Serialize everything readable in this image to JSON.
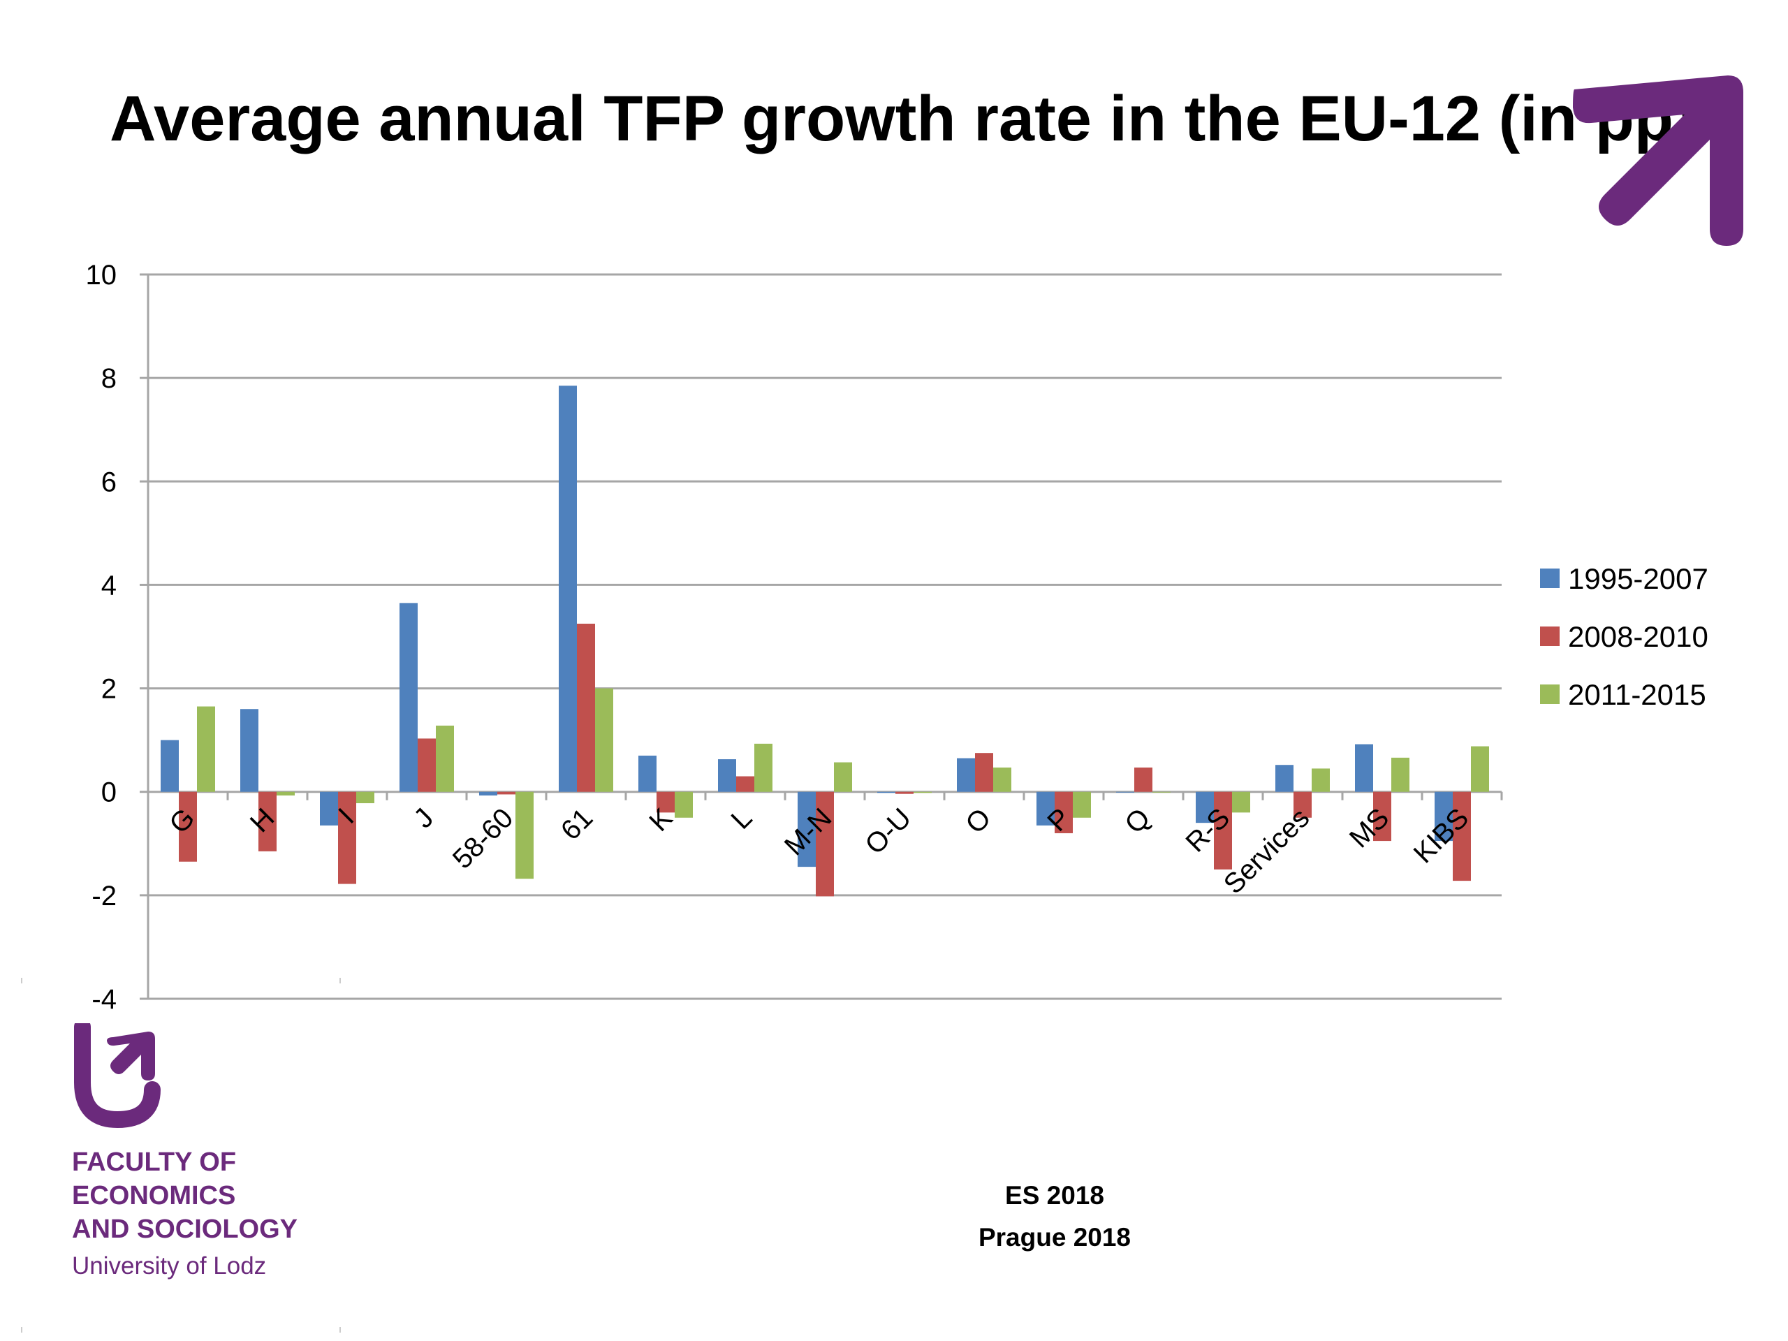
{
  "slide": {
    "title": "Average annual TFP growth rate in the EU-12 (in pp)"
  },
  "faculty": {
    "line1": "FACULTY OF",
    "line2": "ECONOMICS",
    "line3": "AND SOCIOLOGY",
    "university": "University of Lodz",
    "brand_color": "#6b2a7c",
    "logo_icon": "university-logo-icon"
  },
  "footer": {
    "line1": "ES 2018",
    "line2": "Prague 2018"
  },
  "chart_data": {
    "type": "bar",
    "title": "Average annual TFP growth rate in the EU-12 (in pp)",
    "xlabel": "",
    "ylabel": "",
    "ylim": [
      -4,
      10
    ],
    "yticks": [
      10,
      8,
      6,
      4,
      2,
      0,
      -2,
      -4
    ],
    "grid": true,
    "legend_position": "right",
    "categories": [
      "G",
      "H",
      "I",
      "J",
      "58-60",
      "61",
      "K",
      "L",
      "M-N",
      "O-U",
      "O",
      "P",
      "Q",
      "R-S",
      "Services",
      "MS",
      "KIBS"
    ],
    "series": [
      {
        "name": "1995-2007",
        "color": "#4f81bd",
        "values": [
          1.0,
          1.6,
          -0.65,
          3.65,
          -0.07,
          7.85,
          0.7,
          0.63,
          -1.45,
          -0.02,
          0.65,
          -0.65,
          0.0,
          -0.6,
          0.52,
          0.92,
          -0.95
        ]
      },
      {
        "name": "2008-2010",
        "color": "#c0504d",
        "values": [
          -1.35,
          -1.15,
          -1.78,
          1.03,
          -0.05,
          3.25,
          -0.4,
          0.3,
          -2.02,
          -0.04,
          0.75,
          -0.8,
          0.47,
          -1.5,
          -0.5,
          -0.95,
          -1.72
        ]
      },
      {
        "name": "2011-2015",
        "color": "#9bbb59",
        "values": [
          1.65,
          -0.07,
          -0.22,
          1.28,
          -1.68,
          2.0,
          -0.5,
          0.93,
          0.57,
          -0.02,
          0.47,
          -0.5,
          0.0,
          -0.4,
          0.45,
          0.66,
          0.88
        ]
      }
    ]
  }
}
